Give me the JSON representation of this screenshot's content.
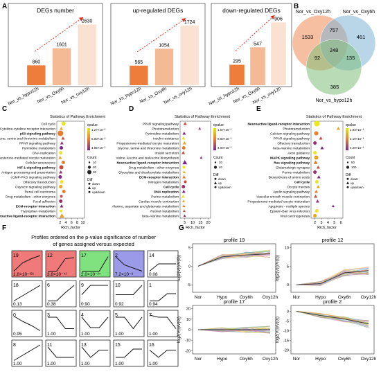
{
  "panel_labels": {
    "a": "A",
    "b": "B",
    "c": "C",
    "d": "D",
    "e": "E",
    "f": "F",
    "g": "G"
  },
  "chart_data": [
    {
      "panel": "A",
      "type": "bar",
      "title": "DEGs number",
      "categories": [
        "Nor_vs_hypo12h",
        "Nor_vs_Oxy6h",
        "Nor_vs_oxy12h"
      ],
      "values": [
        860,
        1601,
        2630
      ],
      "colors": [
        "#ee7d3b",
        "#f4ba96",
        "#fbe1d2"
      ],
      "ylim": [
        0,
        3000
      ]
    },
    {
      "panel": "A",
      "type": "bar",
      "title": "up-regulated DEGs",
      "categories": [
        "Nor_vs_hypo12h",
        "Nor_vs_Oxy6h",
        "Nor_vs_oxy12h"
      ],
      "values": [
        565,
        1054,
        1724
      ],
      "colors": [
        "#ee7d3b",
        "#f4ba96",
        "#fbe1d2"
      ],
      "ylim": [
        0,
        2000
      ]
    },
    {
      "panel": "A",
      "type": "bar",
      "title": "down-regulated DEGs",
      "categories": [
        "Nor_vs_hypo12h",
        "Nor_vs_Oxy6h",
        "Nor_vs_oxy12h"
      ],
      "values": [
        295,
        547,
        906
      ],
      "colors": [
        "#ee7d3b",
        "#f4ba96",
        "#fbe1d2"
      ],
      "ylim": [
        0,
        1000
      ]
    }
  ],
  "venn": {
    "sets": [
      {
        "name": "Nor_vs_Oxy12h",
        "color": "#f08a54"
      },
      {
        "name": "Nor_vs_Oxy6h",
        "color": "#7fb3d5"
      },
      {
        "name": "Nor_vs_hypo12h",
        "color": "#7fbf7b"
      }
    ],
    "regions": {
      "a_only": "1533",
      "b_only": "461",
      "c_only": "385",
      "ab": "757",
      "ac": "92",
      "bc": "135",
      "abc": "248"
    }
  },
  "enrichment": [
    {
      "panel": "C",
      "title": "Statistics of Pathway Enrichment",
      "xlabel": "Rich_factor",
      "ticks": [
        "2",
        "4",
        "6",
        "8",
        "10"
      ],
      "terms": [
        {
          "name": "Cell cycle",
          "bold": false
        },
        {
          "name": "Cytokine-cytokine receptor interaction",
          "bold": false
        },
        {
          "name": "p53 signaling pathway",
          "bold": true
        },
        {
          "name": "Glycine, serine and threonine metabolism",
          "bold": false
        },
        {
          "name": "PPAR signaling pathway",
          "bold": false
        },
        {
          "name": "Pyrimidine metabolism",
          "bold": false
        },
        {
          "name": "DNA replication",
          "bold": false
        },
        {
          "name": "Progesterone-mediated oocyte maturation",
          "bold": false
        },
        {
          "name": "Cellular senescence",
          "bold": false
        },
        {
          "name": "HIF-1 signaling pathway",
          "bold": true
        },
        {
          "name": "Antigen processing and presentation",
          "bold": false
        },
        {
          "name": "cGMP-PKG signaling pathway",
          "bold": false
        },
        {
          "name": "Olfactory transduction",
          "bold": false
        },
        {
          "name": "Oxytocin signaling pathway",
          "bold": false
        },
        {
          "name": "Renal cell carcinoma",
          "bold": false
        },
        {
          "name": "Drug metabolism - other enzymes",
          "bold": false
        },
        {
          "name": "Focal adhesion",
          "bold": false
        },
        {
          "name": "ECM-receptor interaction",
          "bold": true
        },
        {
          "name": "Tryptophan metabolism",
          "bold": false
        },
        {
          "name": "Neuroactive ligand-receptor interaction",
          "bold": true
        }
      ],
      "points": [
        [
          3.2,
          0,
          6,
          0
        ],
        [
          2.4,
          1,
          5,
          1
        ],
        [
          2.1,
          2,
          8,
          2
        ],
        [
          3.0,
          3,
          5,
          1
        ],
        [
          2.6,
          4,
          5,
          1
        ],
        [
          2.4,
          5,
          5,
          0
        ],
        [
          2.2,
          6,
          5,
          0
        ],
        [
          2.0,
          7,
          5,
          1
        ],
        [
          3.1,
          8,
          5,
          2
        ],
        [
          2.4,
          9,
          6,
          2
        ],
        [
          2.2,
          10,
          5,
          1
        ],
        [
          2.0,
          11,
          5,
          2
        ],
        [
          2.5,
          12,
          5,
          2
        ],
        [
          2.2,
          13,
          5,
          2
        ],
        [
          3.3,
          14,
          5,
          2
        ],
        [
          2.4,
          15,
          4,
          2
        ],
        [
          2.2,
          16,
          5,
          2
        ],
        [
          2.5,
          17,
          5,
          1
        ],
        [
          2.3,
          18,
          4,
          2
        ],
        [
          2.6,
          19,
          7,
          1
        ]
      ],
      "legend": {
        "qvalue_title": "qvalue",
        "qvalue_labels": [
          "1.27×10⁻²",
          "6.00×10⁻³",
          "4.85×10⁻²"
        ],
        "count_title": "Count",
        "count_labels": [
          "10",
          "20",
          "30"
        ],
        "diff_title": "Diff",
        "diff_labels": [
          "down",
          "up",
          "up&down"
        ]
      }
    },
    {
      "panel": "D",
      "title": "Statistics of Pathway Enrichment",
      "xlabel": "Rich_factor",
      "ticks": [
        "5",
        "10",
        "15",
        "20"
      ],
      "terms": [
        {
          "name": "PPAR signaling pathway",
          "bold": false
        },
        {
          "name": "Phototransduction",
          "bold": false
        },
        {
          "name": "Pyrimidine metabolism",
          "bold": false
        },
        {
          "name": "Insulin resistance",
          "bold": false
        },
        {
          "name": "Progesterone-mediated oocyte maturation",
          "bold": false
        },
        {
          "name": "Glycine, serine and threonine metabolism",
          "bold": false
        },
        {
          "name": "Insulin secretion",
          "bold": false
        },
        {
          "name": "Valine, leucine and isoleucine biosynthesis",
          "bold": false
        },
        {
          "name": "Neuroactive ligand-receptor interaction",
          "bold": true
        },
        {
          "name": "Drug metabolism - other enzymes",
          "bold": false
        },
        {
          "name": "Glyoxylate and dicarboxylate metabolism",
          "bold": false
        },
        {
          "name": "ECM-receptor interaction",
          "bold": true
        },
        {
          "name": "Nitrogen metabolism",
          "bold": false
        },
        {
          "name": "Cell cycle",
          "bold": true
        },
        {
          "name": "DNA replication",
          "bold": true
        },
        {
          "name": "Purine metabolism",
          "bold": false
        },
        {
          "name": "Cardiac muscle contraction",
          "bold": false
        },
        {
          "name": "Alanine, aspartate and glutamate metabolism",
          "bold": false
        },
        {
          "name": "Retinol metabolism",
          "bold": false
        },
        {
          "name": "beta-Alanine metabolism",
          "bold": false
        }
      ],
      "points": [
        [
          5.2,
          0,
          5,
          1
        ],
        [
          14.5,
          1,
          4,
          1
        ],
        [
          4.6,
          2,
          5,
          1
        ],
        [
          4.2,
          3,
          5,
          1
        ],
        [
          4.8,
          4,
          5,
          1
        ],
        [
          4.3,
          5,
          5,
          2
        ],
        [
          4.0,
          6,
          5,
          1
        ],
        [
          15.5,
          7,
          4,
          1
        ],
        [
          5.0,
          8,
          7,
          1
        ],
        [
          4.4,
          9,
          4,
          2
        ],
        [
          4.6,
          10,
          4,
          1
        ],
        [
          4.5,
          11,
          5,
          1
        ],
        [
          5.3,
          12,
          4,
          0
        ],
        [
          4.1,
          13,
          5,
          2
        ],
        [
          4.3,
          14,
          5,
          1
        ],
        [
          4.0,
          15,
          5,
          1
        ],
        [
          4.2,
          16,
          4,
          1
        ],
        [
          4.4,
          17,
          4,
          1
        ],
        [
          4.6,
          18,
          4,
          1
        ],
        [
          4.9,
          19,
          4,
          1
        ]
      ],
      "legend": {
        "qvalue_title": "qvalue",
        "qvalue_labels": [
          "1.57×10⁻²",
          "8.00×10⁻³",
          "4.00×10⁻³"
        ],
        "count_title": "Count",
        "count_labels": [
          "20",
          "40"
        ],
        "diff_title": "Diff",
        "diff_labels": [
          "down",
          "up",
          "up&down"
        ]
      }
    },
    {
      "panel": "E",
      "title": "Statistics of Pathway Enrichment",
      "xlabel": "Rich_factor",
      "ticks": [
        "2",
        "3",
        "4",
        "5",
        "6"
      ],
      "terms": [
        {
          "name": "Neuroactive ligand-receptor interaction",
          "bold": true
        },
        {
          "name": "Phototransduction",
          "bold": false
        },
        {
          "name": "Calcium signaling pathway",
          "bold": false
        },
        {
          "name": "PPAR signaling pathway",
          "bold": false
        },
        {
          "name": "Olfactory transduction",
          "bold": false
        },
        {
          "name": "beta-Alanine metabolism",
          "bold": false
        },
        {
          "name": "Axon guidance",
          "bold": false
        },
        {
          "name": "MAPK signaling pathway",
          "bold": true
        },
        {
          "name": "Ras signaling pathway",
          "bold": true
        },
        {
          "name": "Glutamatergic synapse",
          "bold": false
        },
        {
          "name": "Purine metabolism",
          "bold": false
        },
        {
          "name": "Biosynthesis of amino acids",
          "bold": false
        },
        {
          "name": "Cell cycle",
          "bold": true
        },
        {
          "name": "Oocyte meiosis",
          "bold": false
        },
        {
          "name": "Apelin signaling pathway",
          "bold": false
        },
        {
          "name": "Vascular smooth muscle contraction",
          "bold": false
        },
        {
          "name": "Progesterone-mediated oocyte maturation",
          "bold": false
        },
        {
          "name": "Apoptosis - multiple species",
          "bold": false
        },
        {
          "name": "Epstein-Barr virus infection",
          "bold": false
        },
        {
          "name": "Viral carcinogenesis",
          "bold": false
        }
      ],
      "points": [
        [
          2.3,
          0,
          8,
          2
        ],
        [
          5.6,
          1,
          5,
          1
        ],
        [
          2.2,
          2,
          6,
          2
        ],
        [
          2.9,
          3,
          5,
          1
        ],
        [
          2.0,
          4,
          5,
          2
        ],
        [
          3.1,
          5,
          5,
          1
        ],
        [
          2.0,
          6,
          5,
          2
        ],
        [
          2.2,
          7,
          6,
          2
        ],
        [
          2.1,
          8,
          6,
          1
        ],
        [
          2.5,
          9,
          5,
          1
        ],
        [
          2.0,
          10,
          5,
          2
        ],
        [
          2.6,
          11,
          5,
          1
        ],
        [
          2.3,
          12,
          5,
          2
        ],
        [
          2.5,
          13,
          5,
          1
        ],
        [
          2.2,
          14,
          5,
          1
        ],
        [
          2.1,
          15,
          5,
          1
        ],
        [
          2.4,
          16,
          5,
          1
        ],
        [
          4.8,
          17,
          4,
          1
        ],
        [
          2.3,
          18,
          5,
          2
        ],
        [
          2.0,
          19,
          5,
          2
        ]
      ],
      "legend": {
        "qvalue_title": "qvalue",
        "qvalue_labels": [
          "1.93×10⁻²",
          "2.10×10⁻²",
          "4.20×10⁻²"
        ],
        "count_title": "Count",
        "count_labels": [
          "50",
          "100"
        ],
        "diff_title": "Diff",
        "diff_labels": [
          "down",
          "up",
          "up&down"
        ]
      }
    }
  ],
  "profiles": {
    "title": "Profiles ordered on the p-value significance of number of genes assigned versus expected",
    "cells": [
      {
        "id": "19",
        "p": "1.8×10⁻³²¹",
        "color": "#f07a7a",
        "shape": [
          0.85,
          0.45,
          0.25,
          0.1
        ]
      },
      {
        "id": "12",
        "p": "3.8×10⁻⁴¹",
        "color": "#f07a7a",
        "shape": [
          0.85,
          0.85,
          0.25,
          0.2
        ]
      },
      {
        "id": "17",
        "p": "2.0×10⁻²⁴",
        "color": "#7fe27f",
        "shape": [
          0.85,
          0.85,
          0.85,
          0.15
        ]
      },
      {
        "id": "2",
        "p": "7.2×10⁻⁸",
        "color": "#9a9ae8",
        "shape": [
          0.15,
          0.55,
          0.7,
          0.85
        ]
      },
      {
        "id": "14",
        "p": "0.08",
        "color": "#ffffff",
        "shape": [
          0.85,
          0.5,
          0.5,
          0.5
        ]
      },
      {
        "id": "18",
        "p": "0.13",
        "color": "#ffffff",
        "shape": [
          0.85,
          0.6,
          0.35,
          0.1
        ]
      },
      {
        "id": "6",
        "p": "0.38",
        "color": "#ffffff",
        "shape": [
          0.85,
          0.85,
          0.45,
          0.1
        ]
      },
      {
        "id": "9",
        "p": "0.90",
        "color": "#ffffff",
        "shape": [
          0.55,
          0.1,
          0.1,
          0.1
        ]
      },
      {
        "id": "10",
        "p": "0.92",
        "color": "#ffffff",
        "shape": [
          0.55,
          0.55,
          0.55,
          0.1
        ]
      },
      {
        "id": "1",
        "p": "0.94",
        "color": "#ffffff",
        "shape": [
          0.85,
          0.85,
          0.5,
          0.5
        ]
      },
      {
        "id": "0",
        "p": "0.95",
        "color": "#ffffff",
        "shape": [
          0.15,
          0.4,
          0.6,
          0.85
        ]
      },
      {
        "id": "3",
        "p": "1.00",
        "color": "#ffffff",
        "shape": [
          0.2,
          0.2,
          0.75,
          0.75
        ]
      },
      {
        "id": "4",
        "p": "1.00",
        "color": "#ffffff",
        "shape": [
          0.2,
          0.7,
          0.7,
          0.2
        ]
      },
      {
        "id": "5",
        "p": "1.00",
        "color": "#ffffff",
        "shape": [
          0.2,
          0.2,
          0.75,
          0.2
        ]
      },
      {
        "id": "7",
        "p": "1.00",
        "color": "#ffffff",
        "shape": [
          0.1,
          0.2,
          0.2,
          0.75
        ]
      },
      {
        "id": "8",
        "p": "1.00",
        "color": "#ffffff",
        "shape": [
          0.85,
          0.6,
          0.35,
          0.1
        ]
      },
      {
        "id": "11",
        "p": "1.00",
        "color": "#ffffff",
        "shape": [
          0.2,
          0.7,
          0.7,
          0.7
        ]
      },
      {
        "id": "13",
        "p": "1.00",
        "color": "#ffffff",
        "shape": [
          0.2,
          0.7,
          0.35,
          0.35
        ]
      },
      {
        "id": "15",
        "p": "1.00",
        "color": "#ffffff",
        "shape": [
          0.7,
          0.7,
          0.3,
          0.3
        ]
      },
      {
        "id": "16",
        "p": "1.00",
        "color": "#ffffff",
        "shape": [
          0.35,
          0.7,
          0.35,
          0.35
        ]
      }
    ]
  },
  "expression": [
    {
      "title": "profile 19",
      "ylabel": "log2(V(i)/V(0))",
      "xticks": [
        "Nor",
        "Hypo",
        "Oxy6h",
        "Oxy12h"
      ],
      "yticks": [
        "-5",
        "0",
        "5"
      ],
      "ylim": [
        -7,
        6
      ],
      "trend": [
        0,
        2.5,
        3.0,
        3.3
      ]
    },
    {
      "title": "profile 12",
      "ylabel": "log2(V(i)/V(0))",
      "xticks": [
        "Nor",
        "Hypo",
        "Oxy6h",
        "Oxy12h"
      ],
      "yticks": [
        "0",
        "5",
        "10"
      ],
      "ylim": [
        -2,
        11
      ],
      "trend": [
        0,
        0.3,
        3.2,
        3.8
      ]
    },
    {
      "title": "profile 17",
      "ylabel": "log2(V(i)/V(0))",
      "xticks": [
        "Nor",
        "Hypo",
        "Oxy6h",
        "Oxy12h"
      ],
      "yticks": [
        "-20",
        "-10",
        "0",
        "10",
        "20"
      ],
      "ylim": [
        -23,
        23
      ],
      "trend": [
        0,
        0,
        0,
        0.2
      ]
    },
    {
      "title": "profile 2",
      "ylabel": "log2(V(i)/V(0))",
      "xticks": [
        "Nor",
        "Hypo",
        "Oxy6h",
        "Oxy12h"
      ],
      "yticks": [
        "-20",
        "-15",
        "-10",
        "-5",
        "0"
      ],
      "ylim": [
        -22,
        3
      ],
      "trend": [
        0,
        -2.2,
        -4.0,
        -6.5
      ]
    }
  ]
}
